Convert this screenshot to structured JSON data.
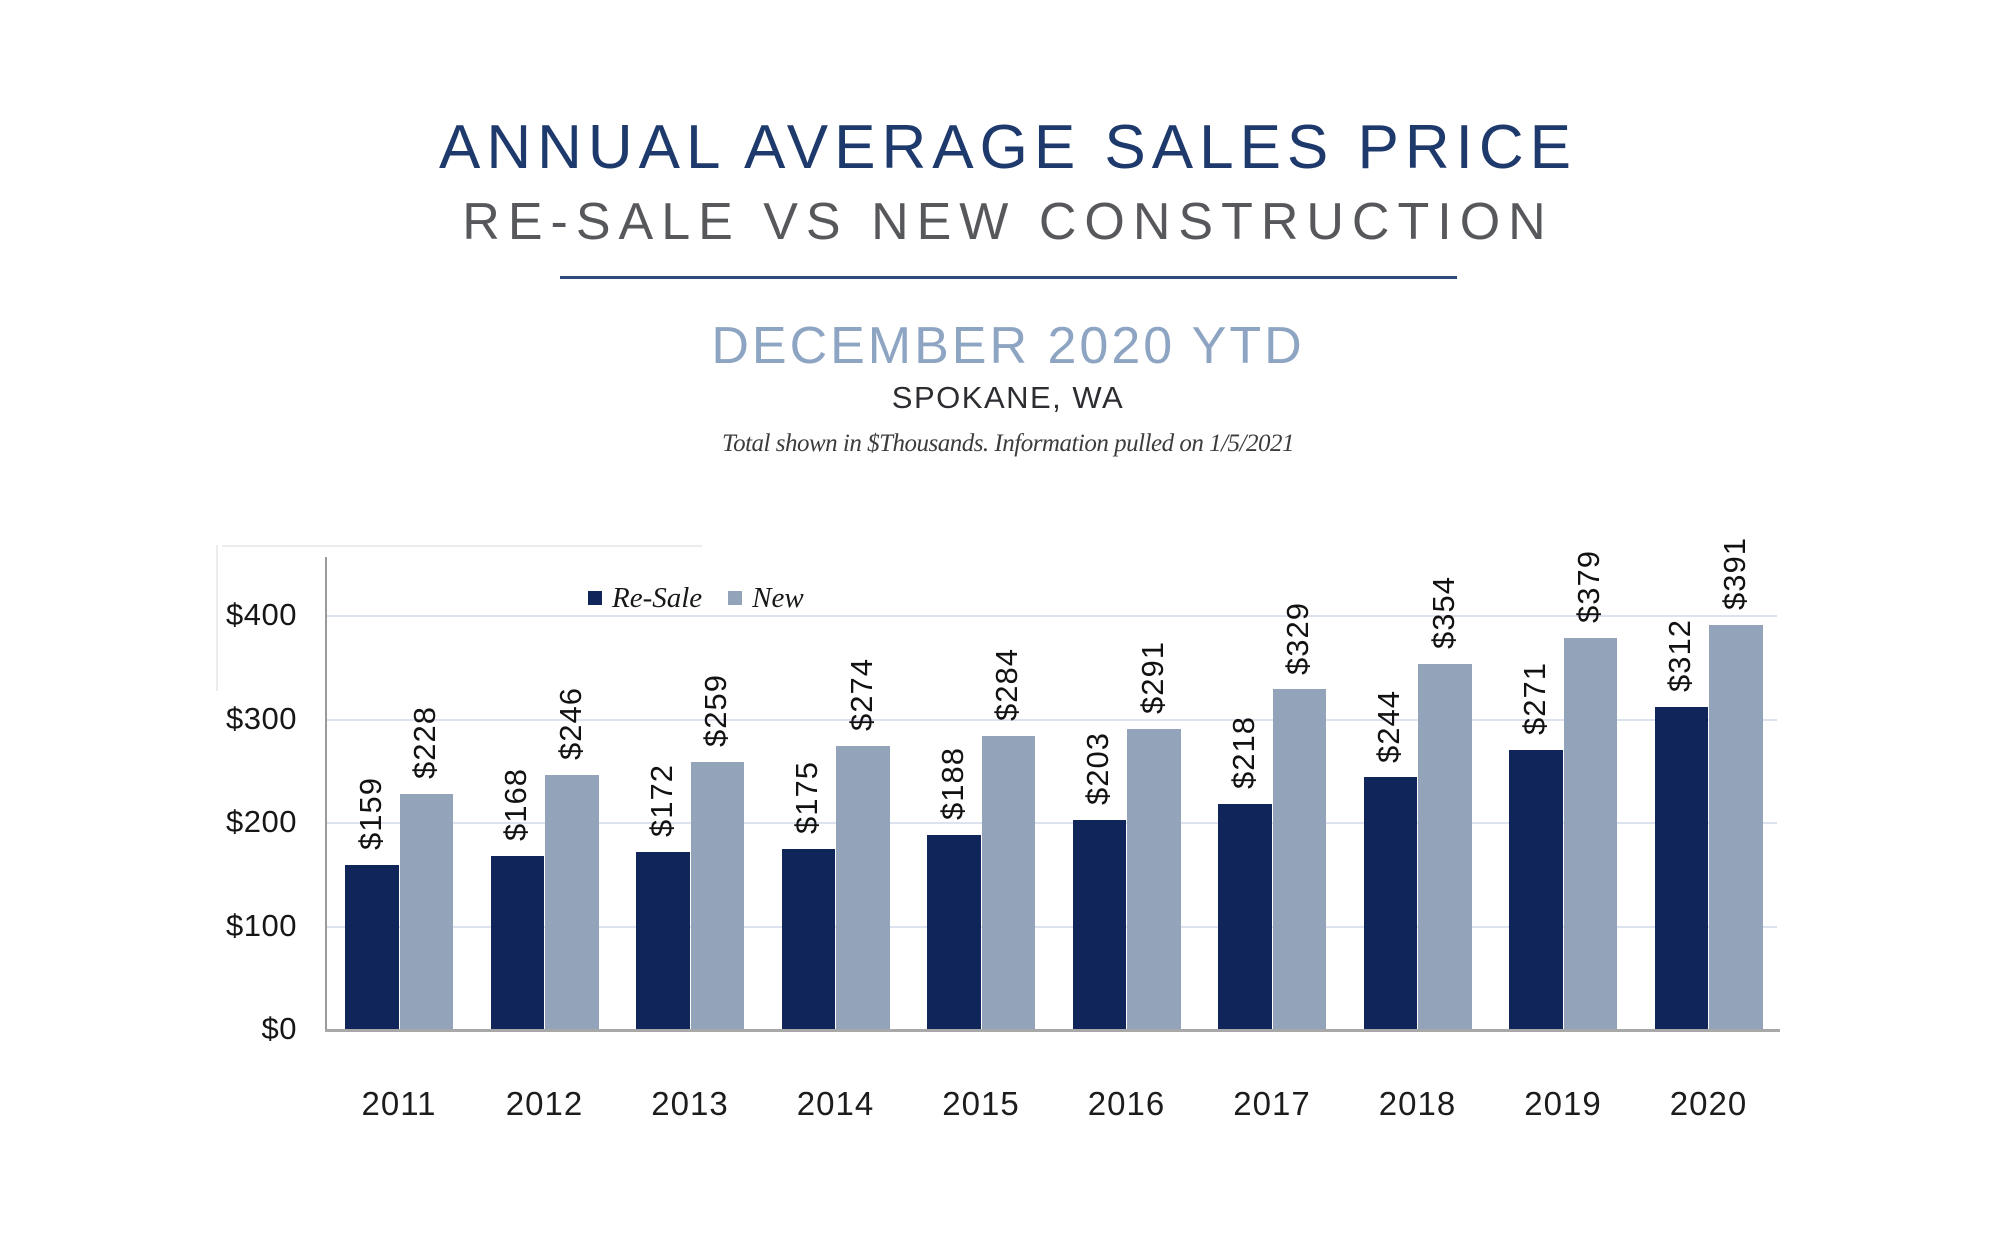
{
  "header": {
    "title": "ANNUAL AVERAGE SALES PRICE",
    "subtitle": "RE-SALE VS NEW CONSTRUCTION",
    "period": "DECEMBER 2020 YTD",
    "location": "SPOKANE, WA",
    "note": "Total shown in $Thousands. Information pulled on 1/5/2021"
  },
  "chart_data": {
    "type": "bar",
    "title": "Annual Average Sales Price, Re-Sale vs New Construction, December 2020 YTD, Spokane WA",
    "categories": [
      "2011",
      "2012",
      "2013",
      "2014",
      "2015",
      "2016",
      "2017",
      "2018",
      "2019",
      "2020"
    ],
    "series": [
      {
        "name": "Re-Sale",
        "color": "#10265a",
        "values": [
          159,
          168,
          172,
          175,
          188,
          203,
          218,
          244,
          271,
          312
        ]
      },
      {
        "name": "New",
        "color": "#93a3ba",
        "values": [
          228,
          246,
          259,
          274,
          284,
          291,
          329,
          354,
          379,
          391
        ]
      }
    ],
    "value_label_prefix": "$",
    "units": "$Thousands",
    "y_tick_values": [
      0,
      100,
      200,
      300,
      400
    ],
    "y_tick_labels": [
      "$0",
      "$100",
      "$200",
      "$300",
      "$400"
    ],
    "ylim": [
      0,
      455
    ],
    "grid": true,
    "legend_position": "top-inside-left",
    "xlabel": "",
    "ylabel": ""
  },
  "colors": {
    "title": "#1e3a6c",
    "subtitle": "#57585b",
    "divider": "#2c4b7c",
    "period": "#8da5c2",
    "gridline": "#dce3ee",
    "axis": "#a8a8a8",
    "resale_bar": "#10265a",
    "new_bar": "#93a3ba"
  }
}
